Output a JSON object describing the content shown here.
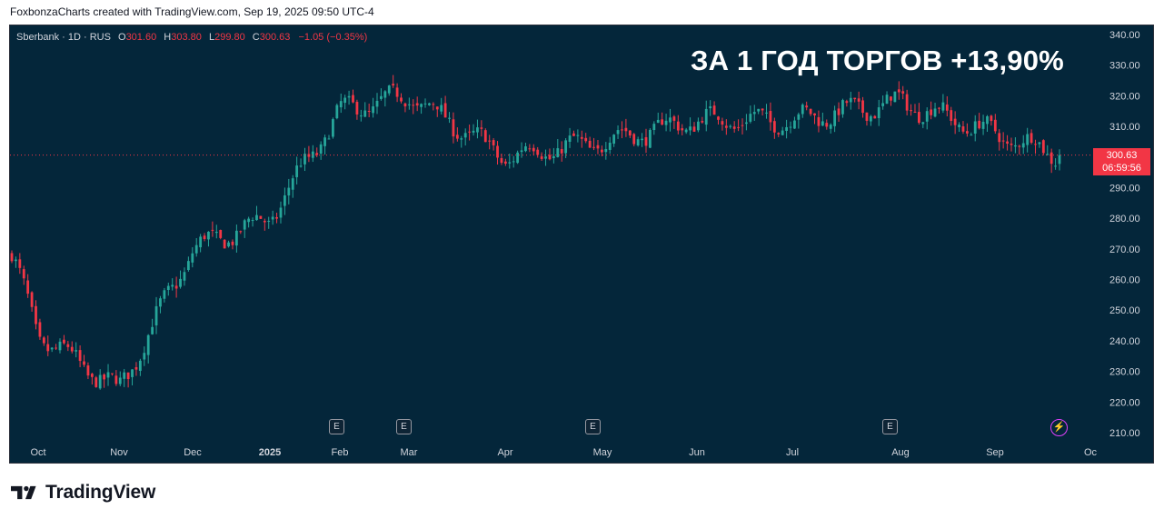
{
  "attribution": "FoxbonzaCharts created with TradingView.com, Sep 19, 2025 09:50 UTC-4",
  "legend": {
    "symbol": "Sberbank · 1D · RUS",
    "o_label": "O",
    "o_value": "301.60",
    "h_label": "H",
    "h_value": "303.80",
    "l_label": "L",
    "l_value": "299.80",
    "c_label": "C",
    "c_value": "300.63",
    "change": "−1.05 (−0.35%)"
  },
  "headline": "ЗА 1 ГОД ТОРГОВ +13,90%",
  "price_tag": {
    "price": "300.63",
    "countdown": "06:59:56"
  },
  "earnings_marker": "E",
  "footer": {
    "brand": "TradingView"
  },
  "colors": {
    "background": "#04263a",
    "up": "#26a69a",
    "down": "#f23645",
    "axis_text": "#d1d4dc",
    "headline": "#ffffff"
  },
  "chart_data": {
    "type": "candlestick",
    "symbol": "Sberbank",
    "interval": "1D",
    "exchange": "RUS",
    "ylim": [
      210,
      340
    ],
    "y_ticks": [
      "210.00",
      "220.00",
      "230.00",
      "240.00",
      "250.00",
      "260.00",
      "270.00",
      "280.00",
      "290.00",
      "300.00",
      "310.00",
      "320.00",
      "330.00",
      "340.00"
    ],
    "x_ticks": [
      "Oct",
      "Nov",
      "Dec",
      "2025",
      "Feb",
      "Mar",
      "Apr",
      "May",
      "Jun",
      "Jul",
      "Aug",
      "Sep",
      "Oc"
    ],
    "last_price": 300.63,
    "grid": false,
    "monthly_path": [
      {
        "month": "Sep 2024",
        "close": 268
      },
      {
        "month": "Oct 2024",
        "close": 242
      },
      {
        "month": "Nov 2024",
        "close": 224
      },
      {
        "month": "Dec 2024",
        "close": 270
      },
      {
        "month": "Jan 2025",
        "close": 280
      },
      {
        "month": "Feb 2025",
        "close": 315
      },
      {
        "month": "Mar 2025",
        "close": 320
      },
      {
        "month": "Apr 2025",
        "close": 300
      },
      {
        "month": "May 2025",
        "close": 305
      },
      {
        "month": "Jun 2025",
        "close": 312
      },
      {
        "month": "Jul 2025",
        "close": 312
      },
      {
        "month": "Aug 2025",
        "close": 318
      },
      {
        "month": "Sep 2025",
        "close": 300.63
      }
    ]
  }
}
